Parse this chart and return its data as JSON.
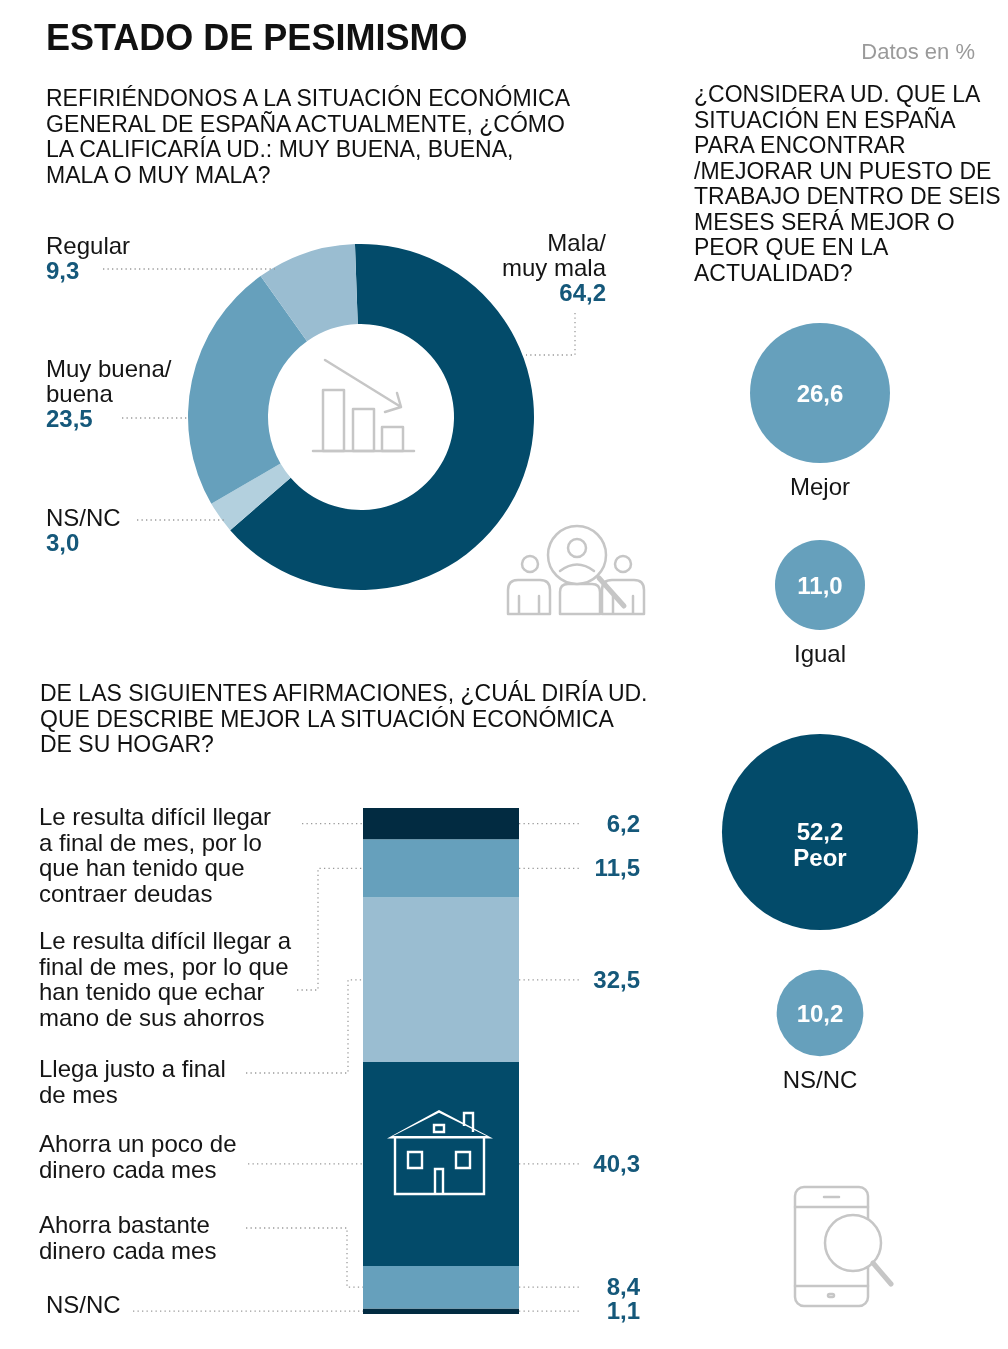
{
  "chart_data": [
    {
      "type": "donut",
      "title": "ESTADO DE PESIMISMO",
      "subtitle": "REFIRIÉNDONOS A LA SITUACIÓN ECONÓMICA GENERAL DE ESPAÑA ACTUALMENTE, ¿CÓMO LA CALIFICARÍA UD.: MUY BUENA, BUENA, MALA O MUY MALA?",
      "categories": [
        "Mala/muy mala",
        "NS/NC",
        "Muy buena/buena",
        "Regular"
      ],
      "values": [
        64.2,
        3.0,
        23.5,
        9.3
      ],
      "value_labels": [
        "64,2",
        "3,0",
        "23,5",
        "9,3"
      ],
      "colors": [
        "#034b6a",
        "#b3d0de",
        "#66a0bc",
        "#9abdd1"
      ]
    },
    {
      "type": "other",
      "title": "¿CONSIDERA UD. QUE LA SITUACIÓN EN ESPAÑA PARA ENCONTRAR /MEJORAR UN PUESTO DE TRABAJO DENTRO DE SEIS MESES SERÁ MEJOR O PEOR QUE EN LA ACTUALIDAD?",
      "annotations": [
        "Datos en %"
      ],
      "categories": [
        "Mejor",
        "Igual",
        "Peor",
        "NS/NC"
      ],
      "values": [
        26.6,
        11.0,
        52.2,
        10.2
      ],
      "value_labels": [
        "26,6",
        "11,0",
        "52,2",
        "10,2"
      ],
      "colors": [
        "#66a0bc",
        "#66a0bc",
        "#034b6a",
        "#66a0bc"
      ]
    },
    {
      "type": "bar",
      "stacked": true,
      "title": "DE LAS SIGUIENTES AFIRMACIONES, ¿CUÁL DIRÍA UD. QUE DESCRIBE MEJOR LA SITUACIÓN ECONÓMICA DE SU HOGAR?",
      "categories": [
        null
      ],
      "ylim": [
        0,
        100
      ],
      "tick_labels": false,
      "series": [
        {
          "name": "NS/NC",
          "color": "#022b41",
          "values": [
            1.1
          ],
          "value_labels": [
            "1,1"
          ]
        },
        {
          "name": "Ahorra bastante dinero cada mes",
          "color": "#66a0bc",
          "values": [
            8.4
          ],
          "value_labels": [
            "8,4"
          ]
        },
        {
          "name": "Ahorra un poco de dinero cada mes",
          "color": "#034b6a",
          "values": [
            40.3
          ],
          "value_labels": [
            "40,3"
          ]
        },
        {
          "name": "Llega justo a final de mes",
          "color": "#9abdd1",
          "values": [
            32.5
          ],
          "value_labels": [
            "32,5"
          ]
        },
        {
          "name": "Le resulta difícil llegar a final de mes, por lo que han tenido que echar mano de sus ahorros",
          "color": "#66a0bc",
          "values": [
            11.5
          ],
          "value_labels": [
            "11,5"
          ]
        },
        {
          "name": "Le resulta difícil llegar a final de mes, por lo que han tenido que contraer deudas",
          "color": "#022b41",
          "values": [
            6.2
          ],
          "value_labels": [
            "6,2"
          ]
        }
      ]
    }
  ]
}
